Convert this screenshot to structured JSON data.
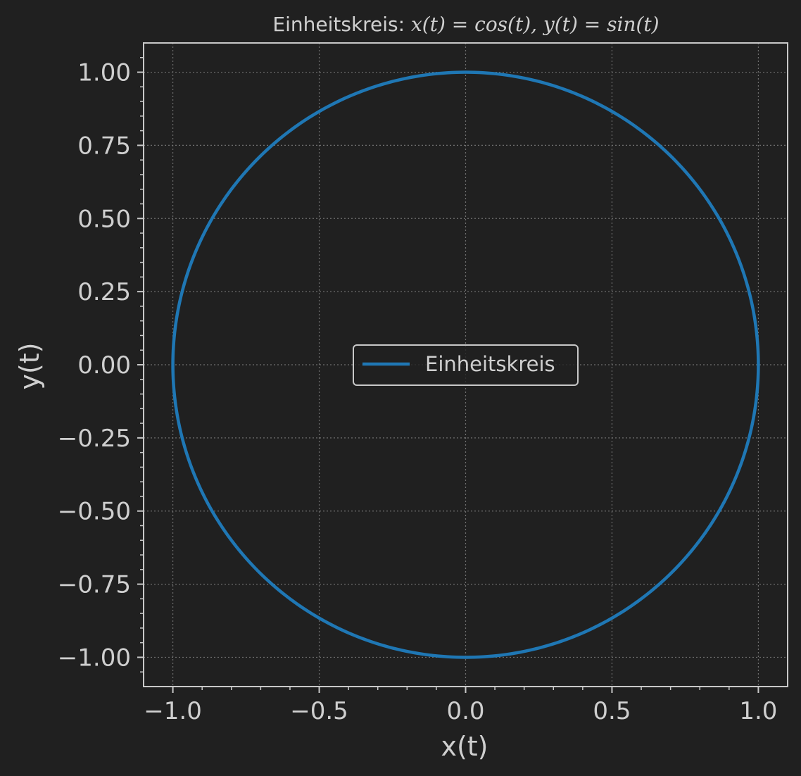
{
  "chart_data": {
    "type": "line",
    "title": {
      "prefix": "Einheitskreis: ",
      "formula": "x(t) = cos(t),  y(t) = sin(t)"
    },
    "xlabel": "x(t)",
    "ylabel": "y(t)",
    "xlim": [
      -1.1,
      1.1
    ],
    "ylim": [
      -1.1,
      1.1
    ],
    "x_ticks": [
      -1.0,
      -0.5,
      0.0,
      0.5,
      1.0
    ],
    "x_tick_labels": [
      "−1.0",
      "−0.5",
      "0.0",
      "0.5",
      "1.0"
    ],
    "y_ticks": [
      1.0,
      0.75,
      0.5,
      0.25,
      0.0,
      -0.25,
      -0.5,
      -0.75,
      -1.0
    ],
    "y_tick_labels": [
      "1.00",
      "0.75",
      "0.50",
      "0.25",
      "0.00",
      "−0.25",
      "−0.50",
      "−0.75",
      "−1.00"
    ],
    "grid": true,
    "legend_position": "center",
    "series": [
      {
        "name": "Einheitskreis",
        "color": "#1f77b4",
        "parametric": {
          "x": "cos(t)",
          "y": "sin(t)",
          "t_range": [
            0,
            6.283185307179586
          ]
        }
      }
    ]
  },
  "colors": {
    "background": "#202020",
    "axes_edge": "#c8c8c8",
    "grid": "#6e6e6e",
    "text": "#cfcfcf",
    "series": "#1f77b4"
  }
}
